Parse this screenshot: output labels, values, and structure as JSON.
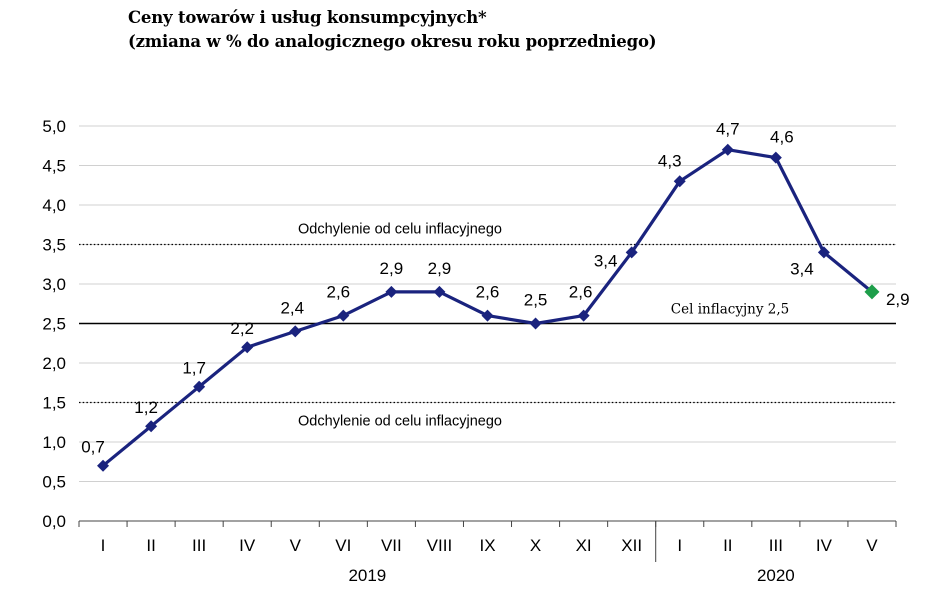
{
  "chart_data": {
    "type": "line",
    "title": "Ceny towarów i usług konsumpcyjnych*",
    "subtitle": "(zmiana w % do analogicznego okresu roku poprzedniego)",
    "categories": [
      "I",
      "II",
      "III",
      "IV",
      "V",
      "VI",
      "VII",
      "VIII",
      "IX",
      "X",
      "XI",
      "XII",
      "I",
      "II",
      "III",
      "IV",
      "V"
    ],
    "values": [
      0.7,
      1.2,
      1.7,
      2.2,
      2.4,
      2.6,
      2.9,
      2.9,
      2.6,
      2.5,
      2.6,
      3.4,
      4.3,
      4.7,
      4.6,
      3.4,
      2.9
    ],
    "value_labels": [
      "0,7",
      "1,2",
      "1,7",
      "2,2",
      "2,4",
      "2,6",
      "2,9",
      "2,9",
      "2,6",
      "2,5",
      "2,6",
      "3,4",
      "4,3",
      "4,7",
      "4,6",
      "3,4",
      "2,9"
    ],
    "years": [
      {
        "label": "2019",
        "from": 0,
        "to": 11
      },
      {
        "label": "2020",
        "from": 12,
        "to": 16
      }
    ],
    "ylim": [
      0,
      5
    ],
    "yticks": [
      0,
      0.5,
      1,
      1.5,
      2,
      2.5,
      3,
      3.5,
      4,
      4.5,
      5
    ],
    "ytick_labels": [
      "0,0",
      "0,5",
      "1,0",
      "1,5",
      "2,0",
      "2,5",
      "3,0",
      "3,5",
      "4,0",
      "4,5",
      "5,0"
    ],
    "grid": true,
    "reference_lines": [
      {
        "value": 3.5,
        "style": "dotted",
        "label": "Odchylenie od celu inflacyjnego"
      },
      {
        "value": 2.5,
        "style": "solid",
        "label": "Cel inflacyjny 2,5"
      },
      {
        "value": 1.5,
        "style": "dotted",
        "label": "Odchylenie od celu inflacyjnego"
      }
    ],
    "highlight_last_point": true
  },
  "colors": {
    "line": "#1a237e",
    "marker": "#1a237e",
    "last_marker": "#1e9e4a",
    "grid": "#d0d0d0",
    "axis": "#444444"
  }
}
